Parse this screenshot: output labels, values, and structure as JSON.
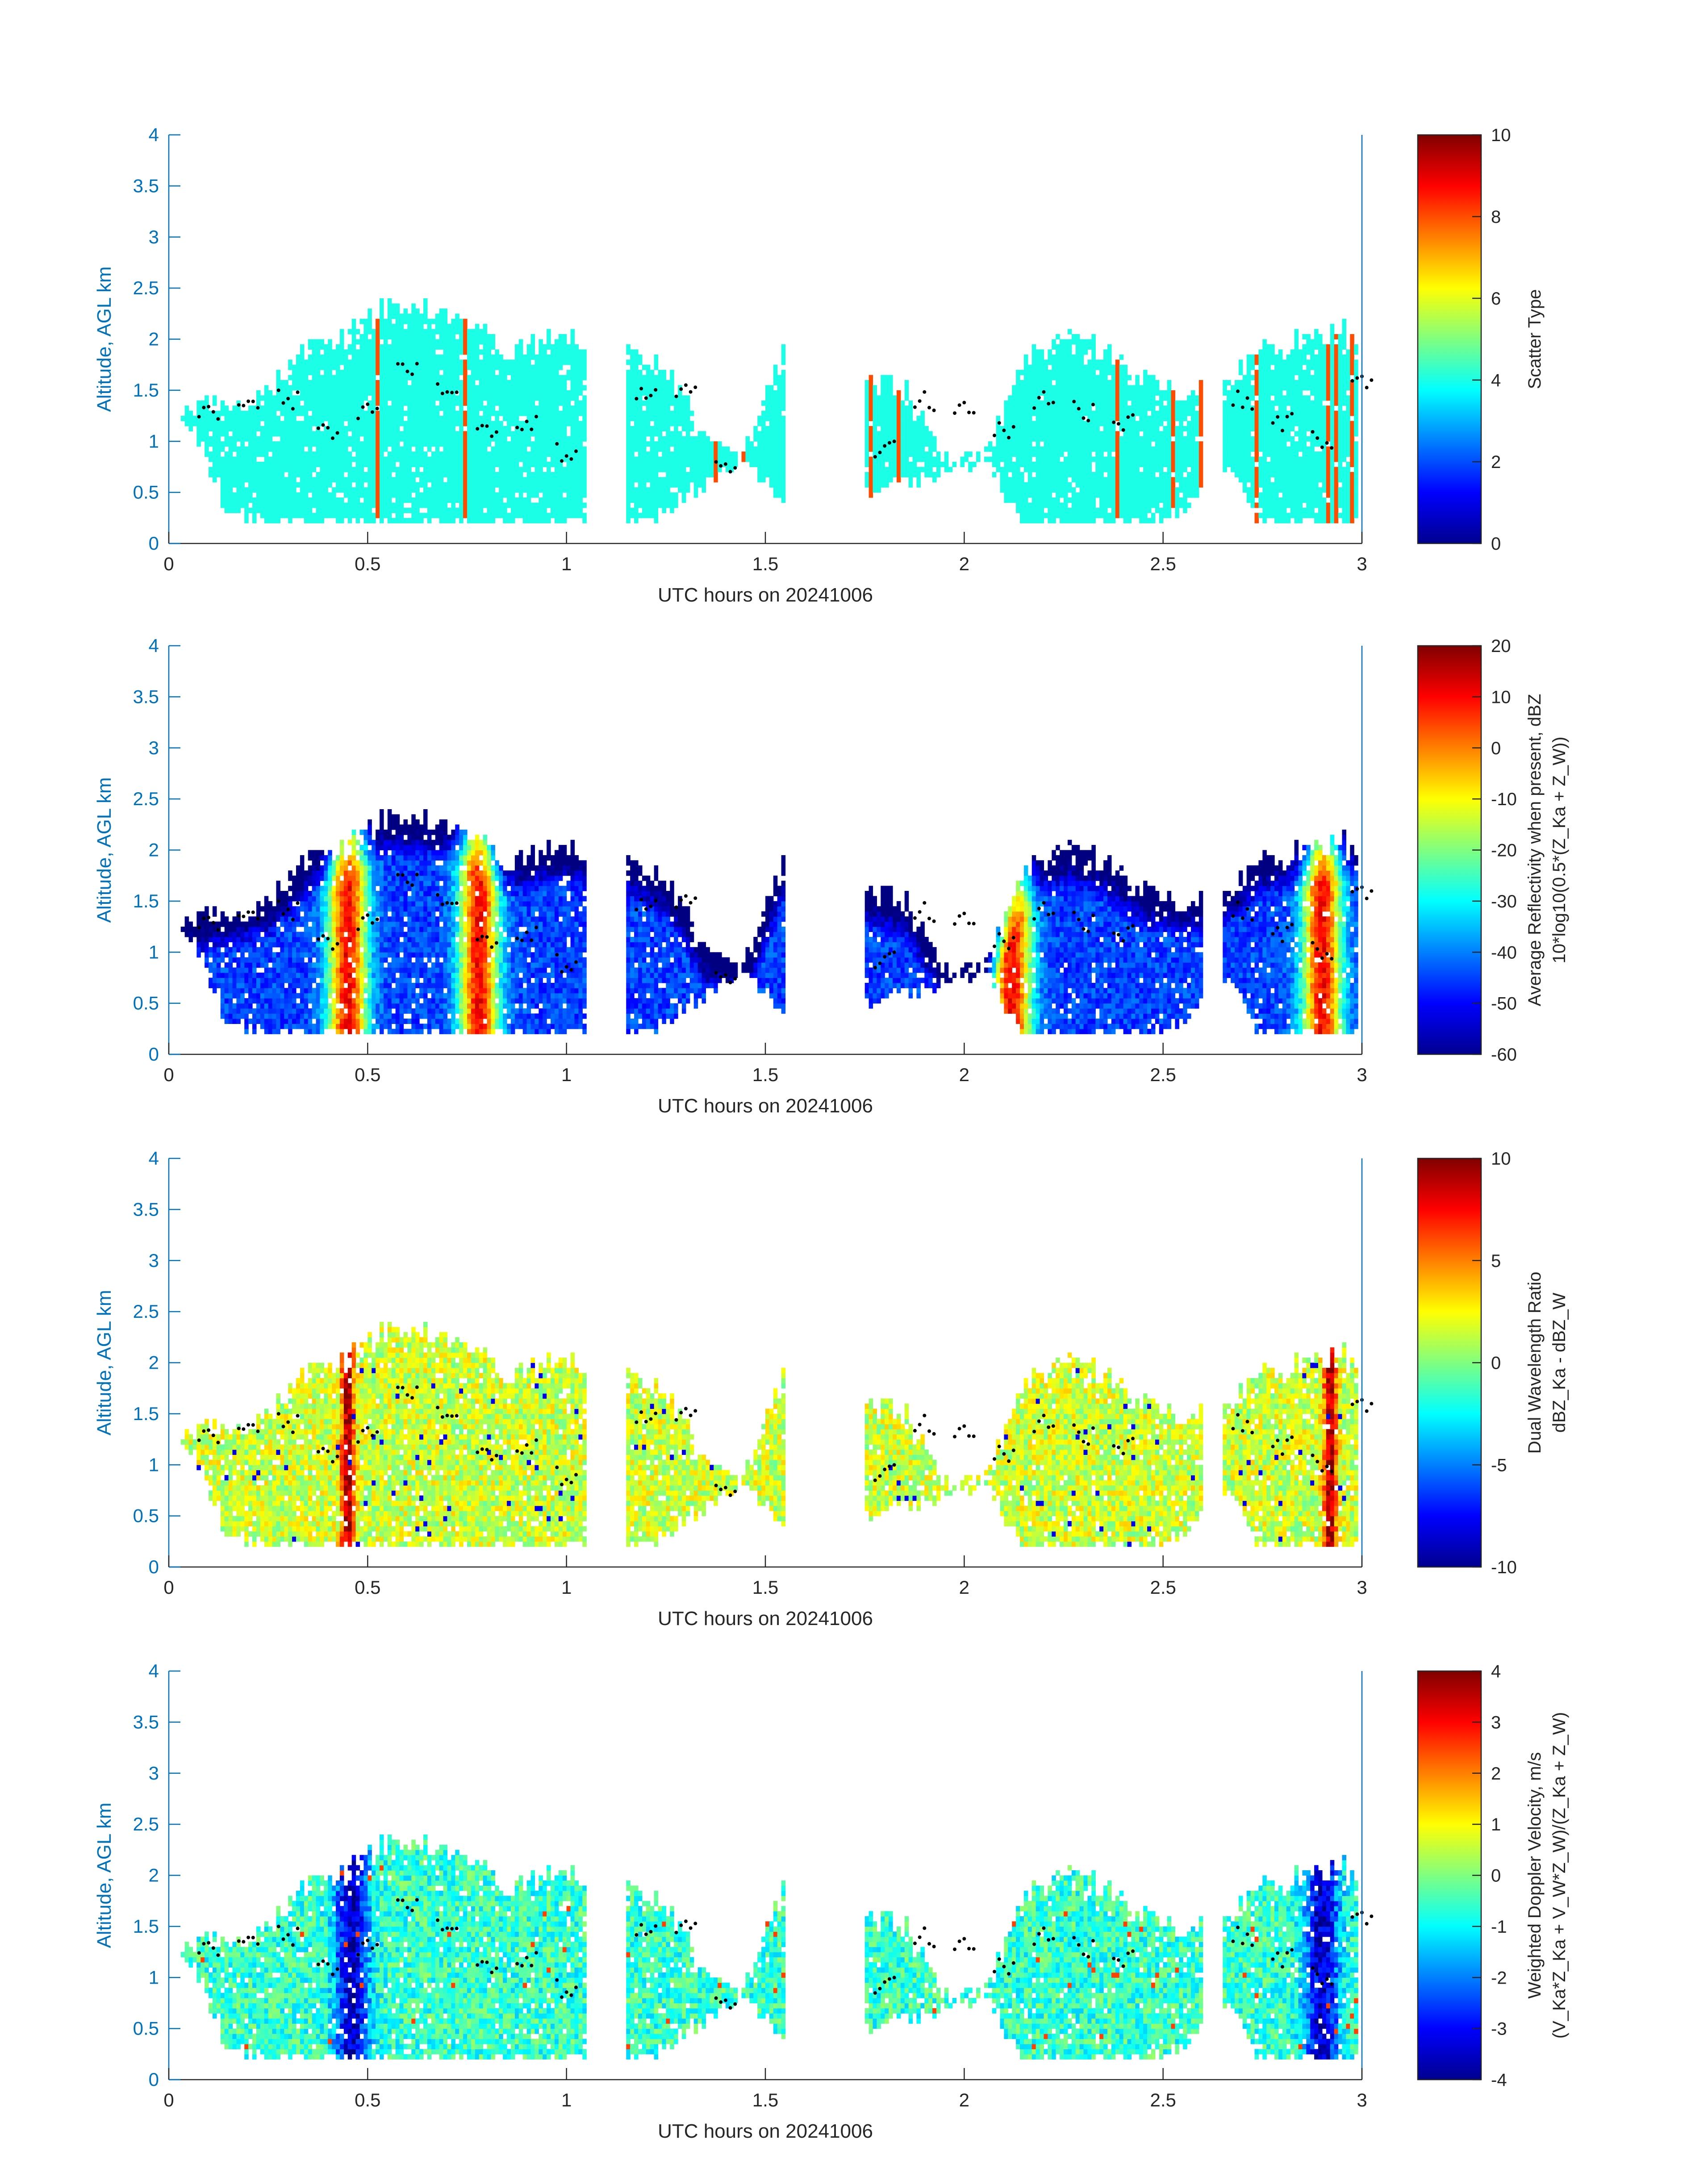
{
  "figure": {
    "accent_axis_color": "#0072BD",
    "text_color": "#262626"
  },
  "chart_data": [
    {
      "type": "heatmap",
      "title": "",
      "xlabel": "UTC hours on 20241006",
      "ylabel": "Altitude, AGL km",
      "xlim": [
        0,
        3
      ],
      "ylim": [
        0,
        4
      ],
      "xticks": [
        "0",
        "0.5",
        "1",
        "1.5",
        "2",
        "2.5",
        "3"
      ],
      "yticks": [
        "0",
        "0.5",
        "1",
        "1.5",
        "2",
        "2.5",
        "3",
        "3.5",
        "4"
      ],
      "colorbar": {
        "label_lines": [
          "Scatter Type"
        ],
        "range": [
          0,
          10
        ],
        "ticks": [
          "0",
          "2",
          "4",
          "6",
          "8",
          "10"
        ],
        "colormap": "jet"
      },
      "echo_tops_km": [
        1.3,
        1.4,
        1.5,
        1.9,
        2.1,
        2.3,
        2.3,
        2.2,
        1.9,
        2.0,
        2.0,
        1.9,
        1.7,
        1.0,
        0.9,
        1.9,
        1.7,
        1.6,
        1.5,
        0.8,
        0.8,
        1.8,
        2.0,
        1.9,
        1.6,
        1.5,
        1.6,
        1.9,
        2.0,
        2.1,
        2.0
      ],
      "echo_bases_km": [
        1.2,
        0.3,
        0.2,
        0.2,
        0.2,
        0.2,
        0.2,
        0.2,
        0.2,
        0.2,
        0.2,
        0.2,
        0.3,
        0.6,
        0.8,
        0.4,
        0.3,
        0.5,
        0.6,
        0.7,
        0.8,
        0.2,
        0.2,
        0.2,
        0.2,
        0.3,
        0.8,
        0.2,
        0.2,
        0.2,
        0.2
      ],
      "echo_x_start": 0.05,
      "echo_x_step": 0.1,
      "gaps_hours": [
        [
          1.05,
          1.15
        ],
        [
          1.55,
          1.75
        ],
        [
          2.6,
          2.65
        ]
      ],
      "cloud_base_hours": [
        0.1,
        0.2,
        0.3,
        0.4,
        0.5,
        0.6,
        0.7,
        0.8,
        0.9,
        1.0,
        1.2,
        1.3,
        1.4,
        1.8,
        1.9,
        2.0,
        2.1,
        2.2,
        2.3,
        2.4,
        2.7,
        2.8,
        2.9,
        3.0
      ],
      "cloud_base_km": [
        1.3,
        1.4,
        1.4,
        1.1,
        1.3,
        1.7,
        1.5,
        1.1,
        1.2,
        0.9,
        1.5,
        1.5,
        0.8,
        0.9,
        1.4,
        1.3,
        1.1,
        1.4,
        1.3,
        1.2,
        1.4,
        1.2,
        1.0,
        1.6
      ]
    },
    {
      "type": "heatmap",
      "title": "",
      "xlabel": "UTC hours on 20241006",
      "ylabel": "Altitude, AGL km",
      "xlim": [
        0,
        3
      ],
      "ylim": [
        0,
        4
      ],
      "xticks": [
        "0",
        "0.5",
        "1",
        "1.5",
        "2",
        "2.5",
        "3"
      ],
      "yticks": [
        "0",
        "0.5",
        "1",
        "1.5",
        "2",
        "2.5",
        "3",
        "3.5",
        "4"
      ],
      "colorbar": {
        "label_lines": [
          "Average Reflectivity when present, dBZ",
          "10*log10(0.5*(Z_Ka + Z_W))"
        ],
        "range": [
          -60,
          20
        ],
        "ticks": [
          "-60",
          "-50",
          "-40",
          "-30",
          "-20",
          "-10",
          "0",
          "10",
          "20"
        ],
        "colormap": "jet"
      },
      "core_peaks_hours": [
        0.45,
        0.78,
        2.12,
        2.9
      ],
      "core_peak_dbz": [
        15,
        10,
        8,
        12
      ]
    },
    {
      "type": "heatmap",
      "title": "",
      "xlabel": "UTC hours on 20241006",
      "ylabel": "Altitude, AGL km",
      "xlim": [
        0,
        3
      ],
      "ylim": [
        0,
        4
      ],
      "xticks": [
        "0",
        "0.5",
        "1",
        "1.5",
        "2",
        "2.5",
        "3"
      ],
      "yticks": [
        "0",
        "0.5",
        "1",
        "1.5",
        "2",
        "2.5",
        "3",
        "3.5",
        "4"
      ],
      "colorbar": {
        "label_lines": [
          "Dual Wavelength Ratio",
          "dBZ_Ka - dBZ_W"
        ],
        "range": [
          -10,
          10
        ],
        "ticks": [
          "-10",
          "-5",
          "0",
          "5",
          "10"
        ],
        "colormap": "jet"
      },
      "core_peaks_hours": [
        0.45,
        2.92
      ],
      "core_peak_db": [
        10,
        9
      ]
    },
    {
      "type": "heatmap",
      "title": "",
      "xlabel": "UTC hours on 20241006",
      "ylabel": "Altitude, AGL km",
      "xlim": [
        0,
        3
      ],
      "ylim": [
        0,
        4
      ],
      "xticks": [
        "0",
        "0.5",
        "1",
        "1.5",
        "2",
        "2.5",
        "3"
      ],
      "yticks": [
        "0",
        "0.5",
        "1",
        "1.5",
        "2",
        "2.5",
        "3",
        "3.5",
        "4"
      ],
      "colorbar": {
        "label_lines": [
          "Weighted Doppler Velocity, m/s",
          "(V_Ka*Z_Ka + V_W*Z_W)/(Z_Ka + Z_W)"
        ],
        "range": [
          -4,
          4
        ],
        "ticks": [
          "-4",
          "-3",
          "-2",
          "-1",
          "0",
          "1",
          "2",
          "3",
          "4"
        ],
        "colormap": "jet"
      },
      "core_peaks_hours": [
        0.46,
        2.9
      ],
      "core_peak_ms": [
        -3.5,
        -3.2
      ]
    }
  ]
}
